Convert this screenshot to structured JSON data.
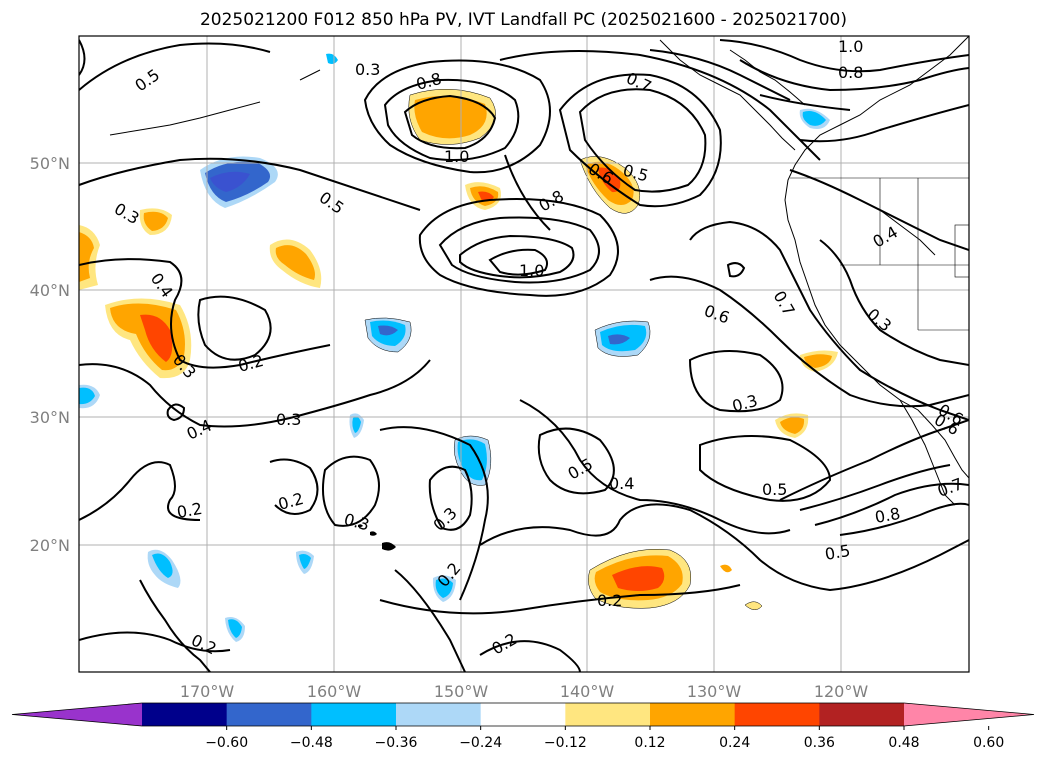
{
  "title": "2025021200 F012 850 hPa PV, IVT Landfall PC (2025021600 - 2025021700)",
  "axes": {
    "lat_labels": [
      "50°N",
      "40°N",
      "30°N",
      "20°N"
    ],
    "lon_labels": [
      "170°W",
      "160°W",
      "150°W",
      "140°W",
      "130°W",
      "120°W"
    ]
  },
  "contour_labels": [
    "0.5",
    "0.3",
    "0.8",
    "0.7",
    "1.0",
    "0.8",
    "1.0",
    "0.5",
    "0.6",
    "0.5",
    "0.8",
    "1.0",
    "0.3",
    "0.4",
    "0.2",
    "0.3",
    "0.4",
    "0.3",
    "0.6",
    "0.7",
    "0.3",
    "0.4",
    "0.3",
    "0.6",
    "0.5",
    "0.4",
    "0.5",
    "0.2",
    "0.2",
    "0.3",
    "0.3",
    "0.2",
    "0.2",
    "0.2",
    "0.2",
    "0.5",
    "0.8",
    "0.7",
    "0.6"
  ],
  "colorbar": {
    "ticks": [
      "−0.60",
      "−0.48",
      "−0.36",
      "−0.24",
      "−0.12",
      "0.12",
      "0.24",
      "0.36",
      "0.48",
      "0.60"
    ],
    "colors": [
      "#9933cc",
      "#00008b",
      "#3366cc",
      "#00bfff",
      "#add8f7",
      "#ffffff",
      "#ffe680",
      "#ffa500",
      "#ff4500",
      "#b22222",
      "#ff85a8"
    ]
  }
}
